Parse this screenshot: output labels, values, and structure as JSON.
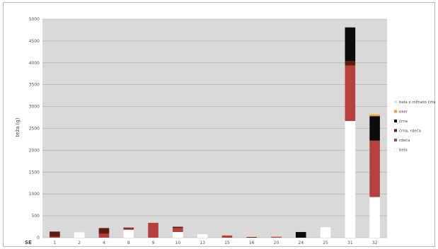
{
  "chart_data": {
    "type": "bar",
    "stacked": true,
    "title": "",
    "ylabel": "teža (g)",
    "xlabel": "SE",
    "ylim": [
      0,
      5000
    ],
    "yticks": [
      0,
      500,
      1000,
      1500,
      2000,
      2500,
      3000,
      3500,
      4000,
      4500,
      5000
    ],
    "grid": true,
    "legend_position": "right",
    "categories": [
      "1",
      "2",
      "4",
      "8",
      "9",
      "10",
      "13",
      "15",
      "16",
      "20",
      "24",
      "25",
      "31",
      "32"
    ],
    "series": [
      {
        "name": "bela",
        "color": "#ffffff",
        "values": [
          0,
          120,
          0,
          180,
          0,
          130,
          80,
          0,
          0,
          0,
          0,
          240,
          2670,
          930
        ]
      },
      {
        "name": "rdeča",
        "color": "#b5403d",
        "values": [
          20,
          0,
          90,
          30,
          340,
          90,
          0,
          50,
          0,
          20,
          0,
          0,
          1270,
          1290
        ]
      },
      {
        "name": "črna, rdeča",
        "color": "#5e1d14",
        "values": [
          120,
          0,
          130,
          20,
          0,
          30,
          0,
          0,
          15,
          0,
          0,
          0,
          100,
          0
        ]
      },
      {
        "name": "črna",
        "color": "#0c0c0c",
        "values": [
          0,
          0,
          0,
          0,
          0,
          0,
          0,
          0,
          0,
          0,
          130,
          0,
          770,
          560
        ]
      },
      {
        "name": "oker",
        "color": "#e8a33a",
        "values": [
          0,
          0,
          0,
          0,
          0,
          0,
          0,
          0,
          0,
          0,
          0,
          0,
          0,
          40
        ]
      },
      {
        "name": "bela z rožnato črtam",
        "color": "#f3dcd7",
        "values": [
          0,
          20,
          0,
          0,
          0,
          0,
          0,
          0,
          0,
          0,
          0,
          0,
          0,
          0
        ]
      }
    ]
  }
}
